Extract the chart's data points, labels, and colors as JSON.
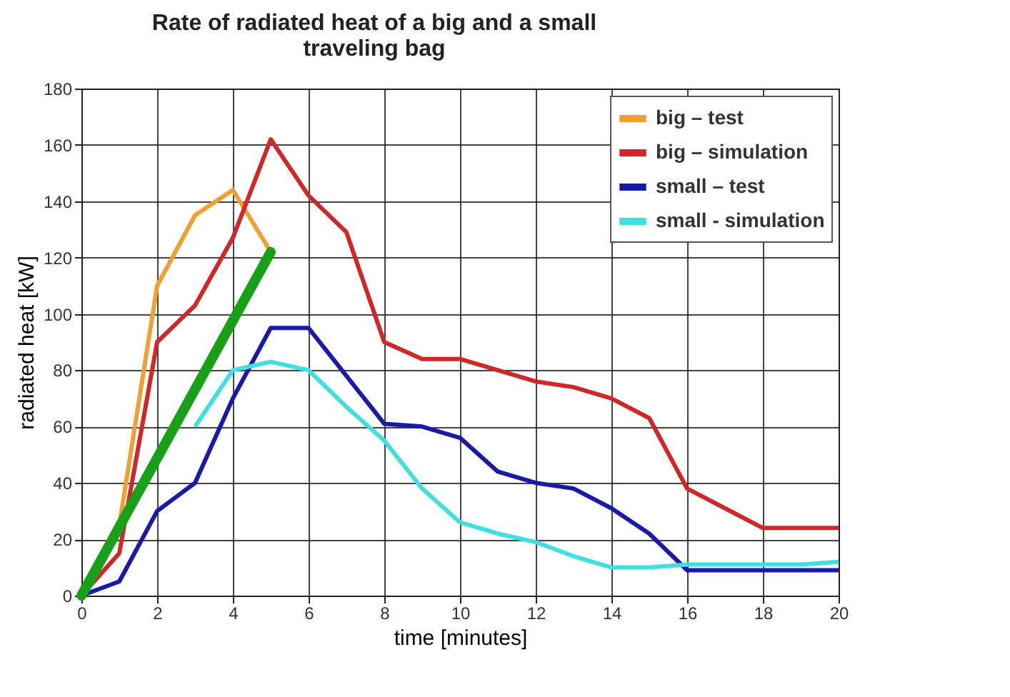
{
  "chart_data": {
    "type": "line",
    "title": "Rate of radiated heat of a big and a small\ntraveling bag",
    "xlabel": "time [minutes]",
    "ylabel": "radiated heat [kW]",
    "xlim": [
      0,
      20
    ],
    "xticks": [
      0,
      2,
      4,
      6,
      8,
      10,
      12,
      14,
      16,
      18,
      20
    ],
    "ylim": [
      0,
      180
    ],
    "yticks": [
      0,
      20,
      40,
      60,
      80,
      100,
      120,
      140,
      160,
      180
    ],
    "grid": true,
    "legend": "top right",
    "series": [
      {
        "name": "big – test",
        "color": "#f0a030",
        "x": [
          0,
          1,
          2,
          3,
          4,
          5
        ],
        "values": [
          0,
          25,
          110,
          135,
          144,
          122
        ]
      },
      {
        "name": "big – simulation",
        "color": "#d02828",
        "x": [
          0,
          1,
          2,
          3,
          4,
          5,
          6,
          7,
          8,
          9,
          10,
          11,
          12,
          13,
          14,
          15,
          16,
          17,
          18,
          19,
          20
        ],
        "values": [
          0,
          15,
          90,
          103,
          127,
          162,
          142,
          129,
          90,
          84,
          84,
          80,
          76,
          74,
          70,
          63,
          38,
          31,
          24,
          24,
          24
        ]
      },
      {
        "name": "small – test",
        "color": "#1a1aa8",
        "x": [
          0,
          1,
          2,
          3,
          4,
          5,
          6,
          7,
          8,
          9,
          10,
          11,
          12,
          13,
          14,
          15,
          16,
          17,
          18,
          19,
          20
        ],
        "values": [
          0,
          5,
          30,
          40,
          70,
          95,
          95,
          78,
          61,
          60,
          56,
          44,
          40,
          38,
          31,
          22,
          9,
          9,
          9,
          9,
          9
        ]
      },
      {
        "name": "small - simulation",
        "color": "#40e0e0",
        "x": [
          3,
          4,
          5,
          6,
          7,
          8,
          9,
          10,
          11,
          12,
          13,
          14,
          15,
          16,
          17,
          18,
          19,
          20
        ],
        "values": [
          60,
          80,
          83,
          80,
          67,
          55,
          38,
          26,
          22,
          19,
          14,
          10,
          10,
          11,
          11,
          11,
          11,
          12
        ]
      },
      {
        "color": "#18a018",
        "x": [
          0,
          5
        ],
        "values": [
          0,
          122
        ]
      }
    ]
  }
}
